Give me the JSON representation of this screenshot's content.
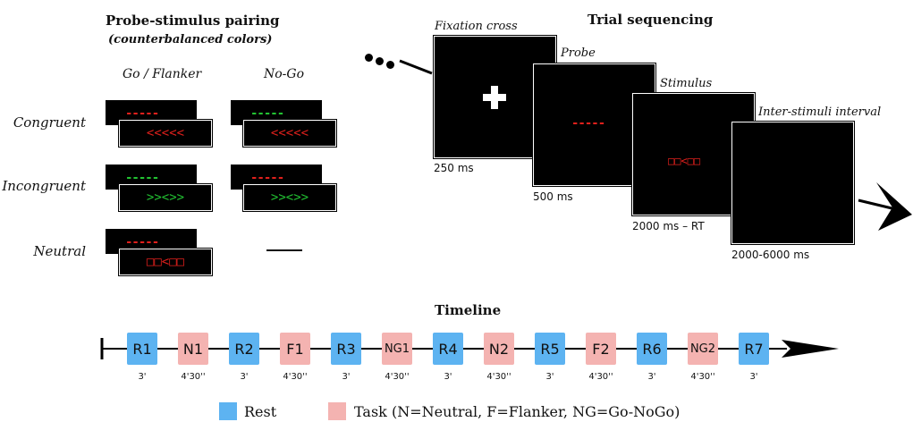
{
  "pairing": {
    "title": "Probe-stimulus pairing",
    "subtitle": "(counterbalanced colors)",
    "col_goflanker": "Go / Flanker",
    "col_nogo": "No-Go",
    "row_congruent": "Congruent",
    "row_incongruent": "Incongruent",
    "row_neutral": "Neutral",
    "congruent_go_probe": "-----",
    "congruent_go_stim": "<<<<<",
    "congruent_nogo_probe": "-----",
    "congruent_nogo_stim": "<<<<<",
    "incongruent_go_probe": "-----",
    "incongruent_go_stim": ">><>>",
    "incongruent_nogo_probe": "-----",
    "incongruent_nogo_stim": ">><>>",
    "neutral_go_probe": "-----",
    "neutral_go_stim": "□□<□□",
    "colors": {
      "red": "#e0201c",
      "green": "#22c232"
    }
  },
  "trial": {
    "title": "Trial sequencing",
    "fixation_label": "Fixation cross",
    "fixation_duration": "250 ms",
    "probe_label": "Probe",
    "probe_symbol": "-----",
    "probe_duration": "500 ms",
    "stimulus_label": "Stimulus",
    "stimulus_symbol": "□□<□□",
    "stimulus_duration": "2000 ms – RT",
    "isi_label": "Inter-stimuli interval",
    "isi_duration": "2000-6000 ms"
  },
  "timeline": {
    "title": "Timeline",
    "blocks": [
      {
        "label": "R1",
        "duration": "3'",
        "kind": "rest"
      },
      {
        "label": "N1",
        "duration": "4'30''",
        "kind": "task"
      },
      {
        "label": "R2",
        "duration": "3'",
        "kind": "rest"
      },
      {
        "label": "F1",
        "duration": "4'30''",
        "kind": "task"
      },
      {
        "label": "R3",
        "duration": "3'",
        "kind": "rest"
      },
      {
        "label": "NG1",
        "duration": "4'30''",
        "kind": "task"
      },
      {
        "label": "R4",
        "duration": "3'",
        "kind": "rest"
      },
      {
        "label": "N2",
        "duration": "4'30''",
        "kind": "task"
      },
      {
        "label": "R5",
        "duration": "3'",
        "kind": "rest"
      },
      {
        "label": "F2",
        "duration": "4'30''",
        "kind": "task"
      },
      {
        "label": "R6",
        "duration": "3'",
        "kind": "rest"
      },
      {
        "label": "NG2",
        "duration": "4'30''",
        "kind": "task"
      },
      {
        "label": "R7",
        "duration": "3'",
        "kind": "rest"
      }
    ],
    "colors": {
      "rest": "#5db3f1",
      "task": "#f4b3b1"
    }
  },
  "legend": {
    "rest": "Rest",
    "task": "Task (N=Neutral, F=Flanker, NG=Go-NoGo)"
  }
}
